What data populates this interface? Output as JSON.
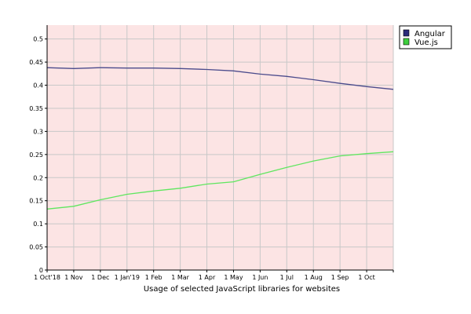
{
  "chart_data": {
    "type": "line",
    "xlabel": "Usage of selected JavaScript libraries for websites",
    "ylabel": "",
    "x": [
      "1 Oct'18",
      "1 Nov",
      "1 Dec",
      "1 Jan'19",
      "1 Feb",
      "1 Mar",
      "1 Apr",
      "1 May",
      "1 Jun",
      "1 Jul",
      "1 Aug",
      "1 Sep",
      "1 Oct",
      ""
    ],
    "y_ticks": [
      "0",
      "0.05",
      "0.1",
      "0.15",
      "0.2",
      "0.25",
      "0.3",
      "0.35",
      "0.4",
      "0.45",
      "0.5"
    ],
    "ylim": [
      0,
      0.53
    ],
    "grid": true,
    "legend_position": "top-right",
    "background_color": "#fce4e4",
    "series": [
      {
        "name": "Angular",
        "color": "#4b4b8c",
        "values": [
          0.438,
          0.436,
          0.438,
          0.437,
          0.437,
          0.436,
          0.434,
          0.431,
          0.424,
          0.419,
          0.412,
          0.404,
          0.397,
          0.391
        ]
      },
      {
        "name": "Vue.js",
        "color": "#5fe65f",
        "values": [
          0.132,
          0.138,
          0.152,
          0.164,
          0.171,
          0.177,
          0.186,
          0.191,
          0.207,
          0.222,
          0.236,
          0.247,
          0.252,
          0.256
        ]
      }
    ]
  }
}
